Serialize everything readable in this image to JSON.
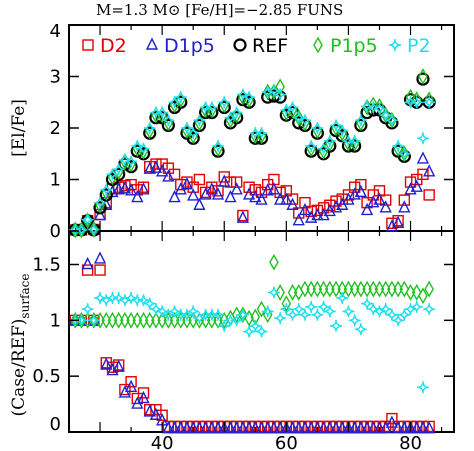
{
  "chart_data": [
    {
      "type": "scatter",
      "title": "M=1.3 M⊙   [Fe/H]=−2.85   FUNS",
      "xlabel": "",
      "ylabel": "[El/Fe]",
      "xlim": [
        25,
        87
      ],
      "ylim": [
        0,
        4
      ],
      "yticks": [
        "0",
        "1",
        "2",
        "3",
        "4"
      ],
      "legend": "top",
      "series": [
        {
          "name": "D2",
          "color": "#e00000",
          "marker": "square",
          "x": [
            26,
            27,
            28,
            29,
            30,
            31,
            32,
            33,
            34,
            35,
            36,
            37,
            38,
            39,
            40,
            41,
            42,
            43,
            44,
            45,
            46,
            47,
            48,
            49,
            50,
            51,
            52,
            53,
            54,
            55,
            56,
            57,
            58,
            59,
            60,
            61,
            62,
            63,
            64,
            65,
            66,
            67,
            68,
            69,
            70,
            71,
            72,
            73,
            74,
            75,
            76,
            77,
            78,
            79,
            80,
            81,
            82,
            83
          ],
          "y": [
            0.02,
            0.02,
            0.2,
            0.03,
            0.32,
            0.55,
            0.82,
            0.85,
            0.88,
            0.9,
            0.8,
            0.85,
            1.25,
            1.3,
            1.3,
            1.22,
            1.1,
            0.9,
            0.95,
            0.85,
            1.0,
            0.75,
            0.85,
            0.78,
            1.05,
            0.95,
            0.95,
            0.3,
            0.85,
            0.8,
            0.75,
            0.9,
            1.0,
            0.75,
            0.78,
            0.62,
            0.35,
            0.55,
            0.38,
            0.4,
            0.45,
            0.5,
            0.58,
            0.62,
            0.7,
            0.85,
            0.9,
            0.55,
            0.7,
            0.78,
            0.6,
            0.15,
            0.2,
            0.6,
            0.95,
            1.0,
            1.1,
            0.7
          ]
        },
        {
          "name": "D1p5",
          "color": "#2020d0",
          "marker": "triangle",
          "x": [
            26,
            27,
            28,
            29,
            30,
            31,
            32,
            33,
            34,
            35,
            36,
            37,
            38,
            39,
            40,
            41,
            42,
            43,
            44,
            45,
            46,
            47,
            48,
            49,
            50,
            51,
            52,
            53,
            54,
            55,
            56,
            57,
            58,
            59,
            60,
            61,
            62,
            63,
            64,
            65,
            66,
            67,
            68,
            69,
            70,
            71,
            72,
            73,
            74,
            75,
            76,
            77,
            78,
            79,
            80,
            81,
            82,
            83
          ],
          "y": [
            0.02,
            0.02,
            0.22,
            0.03,
            0.3,
            0.5,
            0.75,
            0.8,
            0.82,
            0.78,
            0.65,
            0.8,
            1.2,
            1.22,
            1.15,
            1.05,
            0.65,
            0.8,
            0.9,
            0.68,
            0.5,
            0.7,
            0.8,
            0.7,
            0.95,
            0.65,
            0.8,
            0.25,
            0.7,
            0.65,
            0.6,
            0.78,
            0.8,
            0.6,
            0.6,
            0.5,
            0.2,
            0.4,
            0.25,
            0.3,
            0.3,
            0.38,
            0.45,
            0.5,
            0.6,
            0.7,
            0.75,
            0.4,
            0.55,
            0.6,
            0.45,
            0.08,
            0.15,
            0.45,
            0.8,
            0.85,
            1.4,
            1.15
          ]
        },
        {
          "name": "REF",
          "color": "#000000",
          "marker": "circle",
          "x": [
            26,
            27,
            28,
            29,
            30,
            31,
            32,
            33,
            34,
            35,
            36,
            37,
            38,
            39,
            40,
            41,
            42,
            43,
            44,
            45,
            46,
            47,
            48,
            49,
            50,
            51,
            52,
            53,
            54,
            55,
            56,
            57,
            58,
            59,
            60,
            61,
            62,
            63,
            64,
            65,
            66,
            67,
            68,
            69,
            70,
            71,
            72,
            73,
            74,
            75,
            76,
            77,
            78,
            79,
            80,
            81,
            82,
            83
          ],
          "y": [
            0.02,
            0.02,
            0.2,
            0.02,
            0.45,
            0.7,
            1.0,
            1.1,
            1.3,
            1.25,
            1.55,
            1.5,
            1.9,
            2.2,
            2.2,
            2.05,
            2.4,
            2.5,
            1.9,
            1.8,
            2.05,
            2.3,
            2.3,
            1.55,
            2.4,
            2.1,
            2.2,
            2.55,
            2.5,
            1.8,
            1.8,
            2.6,
            2.62,
            2.6,
            2.25,
            2.3,
            2.1,
            2.05,
            1.55,
            1.9,
            1.5,
            1.65,
            1.95,
            1.85,
            1.65,
            1.65,
            2.05,
            2.3,
            2.35,
            2.35,
            2.2,
            2.1,
            1.55,
            1.45,
            2.55,
            2.5,
            2.95,
            2.5
          ]
        },
        {
          "name": "P1p5",
          "color": "#20c020",
          "marker": "diamond",
          "x": [
            26,
            27,
            28,
            29,
            30,
            31,
            32,
            33,
            34,
            35,
            36,
            37,
            38,
            39,
            40,
            41,
            42,
            43,
            44,
            45,
            46,
            47,
            48,
            49,
            50,
            51,
            52,
            53,
            54,
            55,
            56,
            57,
            58,
            59,
            60,
            61,
            62,
            63,
            64,
            65,
            66,
            67,
            68,
            69,
            70,
            71,
            72,
            73,
            74,
            75,
            76,
            77,
            78,
            79,
            80,
            81,
            82,
            83
          ],
          "y": [
            0.02,
            0.02,
            0.2,
            0.03,
            0.5,
            0.75,
            1.05,
            1.15,
            1.35,
            1.3,
            1.6,
            1.55,
            1.95,
            2.25,
            2.25,
            2.1,
            2.45,
            2.55,
            1.95,
            1.85,
            2.1,
            2.35,
            2.35,
            1.6,
            2.45,
            2.15,
            2.25,
            2.6,
            2.55,
            1.85,
            1.85,
            2.7,
            2.7,
            2.8,
            2.3,
            2.35,
            2.2,
            2.1,
            1.6,
            1.95,
            1.55,
            1.7,
            2.0,
            1.9,
            1.7,
            1.7,
            2.1,
            2.4,
            2.45,
            2.42,
            2.25,
            2.15,
            1.6,
            1.5,
            2.6,
            2.55,
            3.0,
            2.55
          ]
        },
        {
          "name": "P2",
          "color": "#20e0f0",
          "marker": "star",
          "x": [
            26,
            27,
            28,
            29,
            30,
            31,
            32,
            33,
            34,
            35,
            36,
            37,
            38,
            39,
            40,
            41,
            42,
            43,
            44,
            45,
            46,
            47,
            48,
            49,
            50,
            51,
            52,
            53,
            54,
            55,
            56,
            57,
            58,
            59,
            60,
            61,
            62,
            63,
            64,
            65,
            66,
            67,
            68,
            69,
            70,
            71,
            72,
            73,
            74,
            75,
            76,
            77,
            78,
            79,
            80,
            81,
            82,
            83
          ],
          "y": [
            0.02,
            0.02,
            0.22,
            0.03,
            0.55,
            0.8,
            1.1,
            1.2,
            1.38,
            1.35,
            1.65,
            1.6,
            2.0,
            2.3,
            2.3,
            2.15,
            2.5,
            2.6,
            2.0,
            1.9,
            2.15,
            2.4,
            2.4,
            1.65,
            2.5,
            2.2,
            2.3,
            2.65,
            2.6,
            1.9,
            1.9,
            2.7,
            2.72,
            2.65,
            2.35,
            2.4,
            2.2,
            2.15,
            1.65,
            2.0,
            1.6,
            1.75,
            2.05,
            1.95,
            1.75,
            1.75,
            2.15,
            2.42,
            2.4,
            2.38,
            2.25,
            2.15,
            1.65,
            1.5,
            2.5,
            2.5,
            1.8,
            2.5
          ]
        }
      ]
    },
    {
      "type": "scatter",
      "title": "",
      "xlabel": "",
      "ylabel": "(Case/REF)",
      "ylabel_sub": "surface",
      "xlim": [
        25,
        87
      ],
      "ylim": [
        0,
        1.8
      ],
      "yticks": [
        "0",
        "0.5",
        "1",
        "1.5"
      ],
      "xticks": [
        "40",
        "60",
        "80"
      ],
      "series": [
        {
          "name": "D2",
          "color": "#e00000",
          "marker": "square",
          "x": [
            26,
            27,
            28,
            29,
            30,
            31,
            32,
            33,
            34,
            35,
            36,
            37,
            38,
            39,
            40,
            41,
            42,
            43,
            44,
            45,
            46,
            47,
            48,
            49,
            50,
            51,
            52,
            53,
            54,
            55,
            56,
            57,
            58,
            59,
            60,
            61,
            62,
            63,
            64,
            65,
            66,
            67,
            68,
            69,
            70,
            71,
            72,
            73,
            74,
            75,
            76,
            77,
            78,
            79,
            80,
            81,
            82,
            83
          ],
          "y": [
            1.0,
            1.0,
            1.45,
            1.0,
            1.45,
            0.62,
            0.58,
            0.6,
            0.38,
            0.45,
            0.3,
            0.35,
            0.2,
            0.2,
            0.15,
            0.05,
            0.05,
            0.05,
            0.05,
            0.05,
            0.05,
            0.05,
            0.05,
            0.05,
            0.05,
            0.05,
            0.05,
            0.05,
            0.05,
            0.05,
            0.05,
            0.05,
            0.05,
            0.05,
            0.05,
            0.05,
            0.05,
            0.05,
            0.05,
            0.05,
            0.05,
            0.05,
            0.05,
            0.05,
            0.05,
            0.05,
            0.05,
            0.05,
            0.05,
            0.05,
            0.05,
            0.12,
            0.05,
            0.05,
            0.05,
            0.05,
            0.05,
            0.05
          ]
        },
        {
          "name": "D1p5",
          "color": "#2020d0",
          "marker": "triangle",
          "x": [
            26,
            27,
            28,
            29,
            30,
            31,
            32,
            33,
            34,
            35,
            36,
            37,
            38,
            39,
            40,
            41,
            42,
            43,
            44,
            45,
            46,
            47,
            48,
            49,
            50,
            51,
            52,
            53,
            54,
            55,
            56,
            57,
            58,
            59,
            60,
            61,
            62,
            63,
            64,
            65,
            66,
            67,
            68,
            69,
            70,
            71,
            72,
            73,
            74,
            75,
            76,
            77,
            78,
            79,
            80,
            81,
            82,
            83
          ],
          "y": [
            1.0,
            1.0,
            1.5,
            1.0,
            1.55,
            0.6,
            0.55,
            0.58,
            0.35,
            0.4,
            0.25,
            0.3,
            0.18,
            0.15,
            0.1,
            0.03,
            0.03,
            0.03,
            0.03,
            0.03,
            0.03,
            0.03,
            0.03,
            0.03,
            0.03,
            0.03,
            0.03,
            0.03,
            0.03,
            0.03,
            0.03,
            0.03,
            0.03,
            0.03,
            0.03,
            0.03,
            0.03,
            0.03,
            0.03,
            0.03,
            0.03,
            0.03,
            0.03,
            0.03,
            0.03,
            0.03,
            0.03,
            0.03,
            0.03,
            0.03,
            0.03,
            0.08,
            0.03,
            0.03,
            0.03,
            0.03,
            0.03,
            0.03
          ]
        },
        {
          "name": "REF",
          "color": "#000000",
          "marker": "circle",
          "x": [],
          "y": []
        },
        {
          "name": "P1p5",
          "color": "#20c020",
          "marker": "diamond",
          "x": [
            26,
            27,
            28,
            29,
            30,
            31,
            32,
            33,
            34,
            35,
            36,
            37,
            38,
            39,
            40,
            41,
            42,
            43,
            44,
            45,
            46,
            47,
            48,
            49,
            50,
            51,
            52,
            53,
            54,
            55,
            56,
            57,
            58,
            59,
            60,
            61,
            62,
            63,
            64,
            65,
            66,
            67,
            68,
            69,
            70,
            71,
            72,
            73,
            74,
            75,
            76,
            77,
            78,
            79,
            80,
            81,
            82,
            83
          ],
          "y": [
            1.0,
            1.0,
            1.0,
            1.0,
            1.0,
            1.0,
            1.0,
            1.0,
            1.0,
            1.0,
            1.0,
            1.0,
            1.0,
            1.0,
            1.0,
            1.0,
            1.0,
            1.0,
            1.0,
            1.0,
            1.0,
            1.0,
            1.0,
            1.0,
            1.0,
            1.02,
            1.05,
            1.05,
            1.02,
            1.03,
            1.1,
            1.05,
            1.52,
            1.25,
            1.15,
            1.25,
            1.25,
            1.28,
            1.28,
            1.28,
            1.28,
            1.28,
            1.28,
            1.28,
            1.28,
            1.28,
            1.28,
            1.28,
            1.28,
            1.28,
            1.28,
            1.28,
            1.28,
            1.28,
            1.25,
            1.25,
            1.22,
            1.28
          ]
        },
        {
          "name": "P2",
          "color": "#20e0f0",
          "marker": "star",
          "x": [
            26,
            27,
            28,
            29,
            30,
            31,
            32,
            33,
            34,
            35,
            36,
            37,
            38,
            39,
            40,
            41,
            42,
            43,
            44,
            45,
            46,
            47,
            48,
            49,
            50,
            51,
            52,
            53,
            54,
            55,
            56,
            57,
            58,
            59,
            60,
            61,
            62,
            63,
            64,
            65,
            66,
            67,
            68,
            69,
            70,
            71,
            72,
            73,
            74,
            75,
            76,
            77,
            78,
            79,
            80,
            81,
            82,
            83
          ],
          "y": [
            1.0,
            1.0,
            1.1,
            1.0,
            1.2,
            1.18,
            1.2,
            1.2,
            1.18,
            1.2,
            1.18,
            1.18,
            1.15,
            1.1,
            1.08,
            1.05,
            1.08,
            1.05,
            1.05,
            1.08,
            1.02,
            1.05,
            1.05,
            1.05,
            0.95,
            1.0,
            1.0,
            1.05,
            0.9,
            0.95,
            0.9,
            1.08,
            1.25,
            1.02,
            1.1,
            1.05,
            1.1,
            1.05,
            1.12,
            1.05,
            1.12,
            1.08,
            0.95,
            1.2,
            1.08,
            1.0,
            0.92,
            1.15,
            1.1,
            1.08,
            1.1,
            1.05,
            1.0,
            1.05,
            1.1,
            1.12,
            0.4,
            1.1
          ]
        }
      ]
    }
  ]
}
